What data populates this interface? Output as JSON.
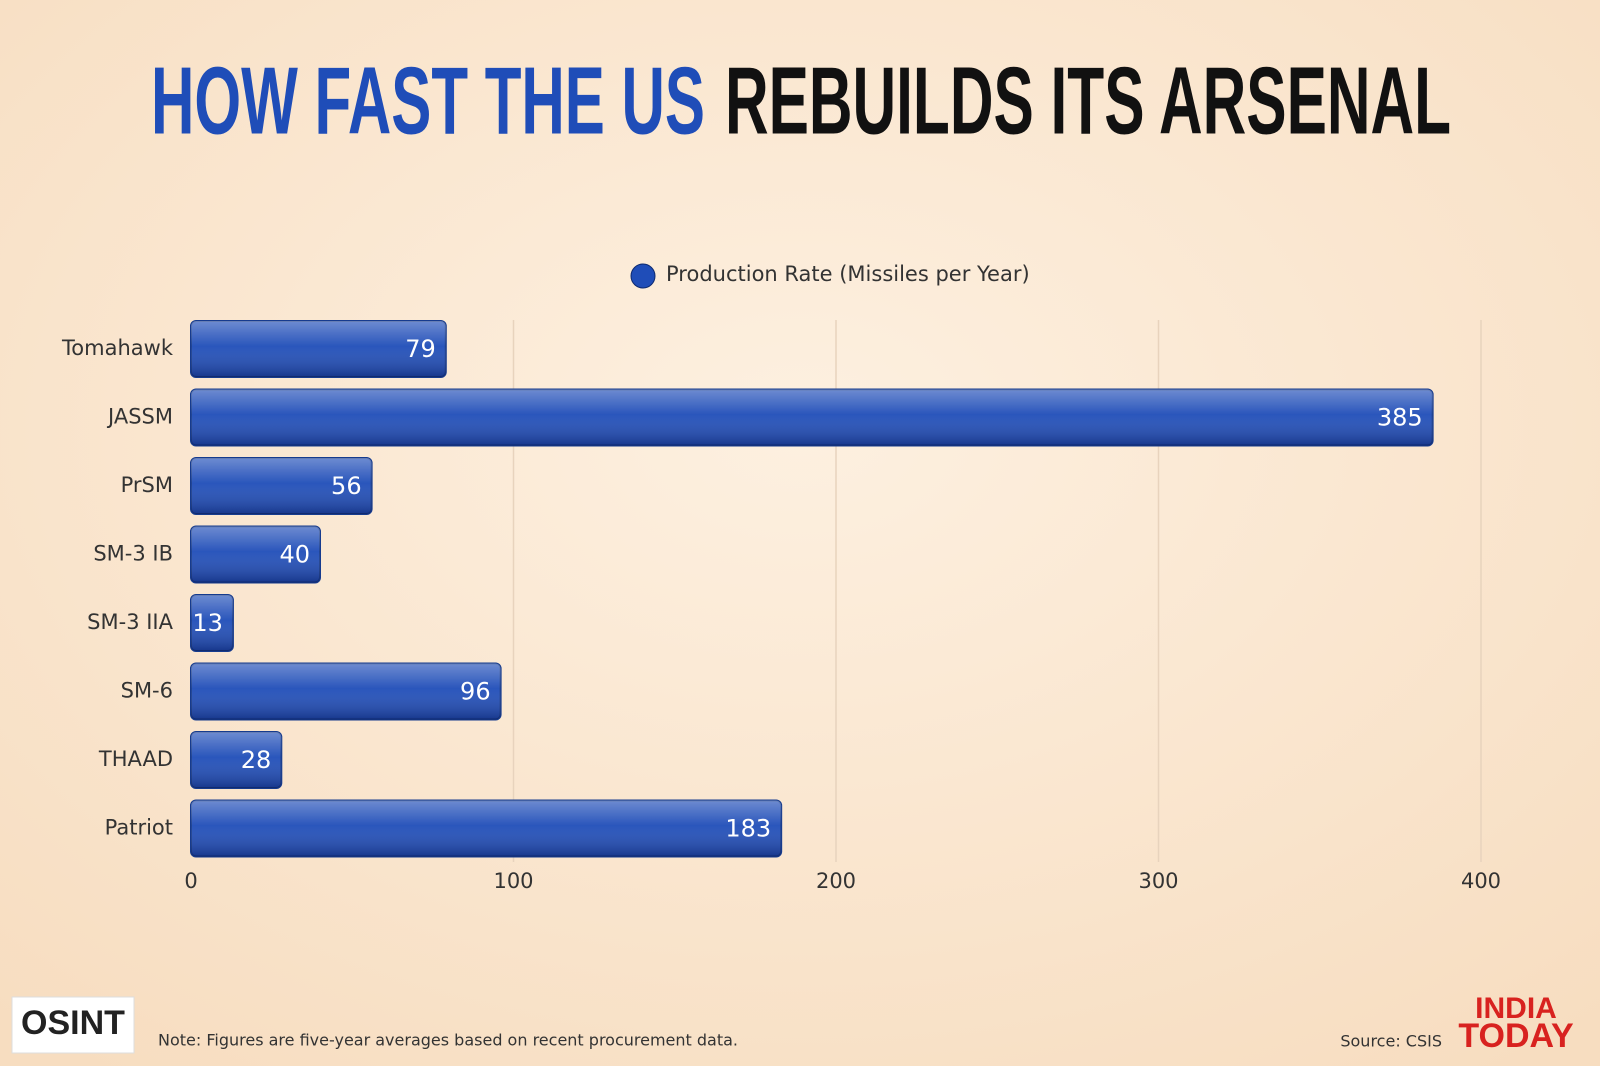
{
  "chart_data": {
    "type": "bar",
    "orientation": "horizontal",
    "title_parts": [
      "HOW FAST THE US",
      "REBUILDS ITS ARSENAL"
    ],
    "categories": [
      "Tomahawk",
      "JASSM",
      "PrSM",
      "SM-3 IB",
      "SM-3 IIA",
      "SM-6",
      "THAAD",
      "Patriot"
    ],
    "series": [
      {
        "name": "Production Rate (Missiles per Year)",
        "color": "#1f4db8",
        "values": [
          79,
          385,
          56,
          40,
          13,
          96,
          28,
          183
        ]
      }
    ],
    "xlim": [
      0,
      400
    ],
    "xticks": [
      0,
      100,
      200,
      300,
      400
    ],
    "grid": true,
    "legend": "top",
    "note": "Note: Figures are five-year averages based on recent procurement data.",
    "source": "Source: CSIS",
    "logo": "OSINT",
    "brand": [
      "INDIA",
      "TODAY"
    ]
  }
}
